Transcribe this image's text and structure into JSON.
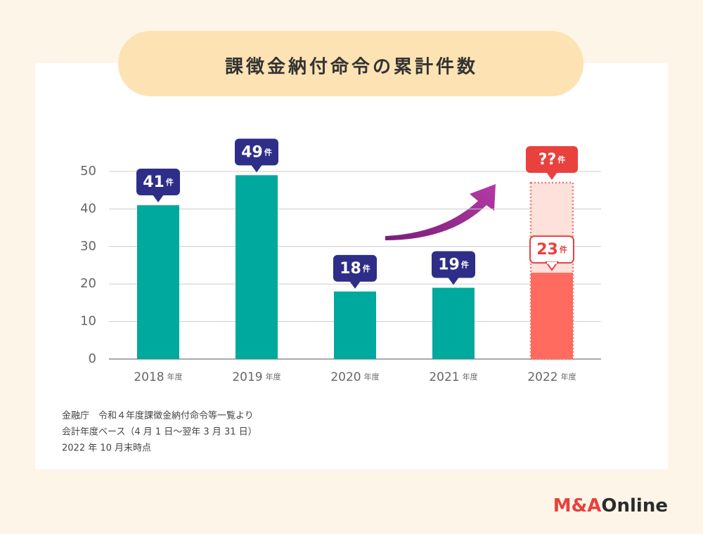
{
  "chart_data": {
    "type": "bar",
    "title": "課徴金納付命令の累計件数",
    "categories": [
      "2018",
      "2019",
      "2020",
      "2021",
      "2022"
    ],
    "category_suffix": "年度",
    "values": [
      41,
      49,
      18,
      19,
      23
    ],
    "value_unit": "件",
    "colors": [
      "#00a99d",
      "#00a99d",
      "#00a99d",
      "#00a99d",
      "#ff6b5e"
    ],
    "label_colors": [
      "#2e2e88",
      "#2e2e88",
      "#2e2e88",
      "#2e2e88",
      "#e8413e"
    ],
    "projection": {
      "category": "2022",
      "value": 47,
      "label": "??"
    },
    "ylim": [
      0,
      50
    ],
    "yticks": [
      0,
      10,
      20,
      30,
      40,
      50
    ],
    "grid": true,
    "notes": [
      "金融庁　令和４年度課徴金納付命令等一覧より",
      "会計年度ベース（4 月 1 日〜翌年 3 月 31 日）",
      "2022 年 10 月末時点"
    ],
    "logo": [
      "M&A",
      "Online"
    ]
  }
}
